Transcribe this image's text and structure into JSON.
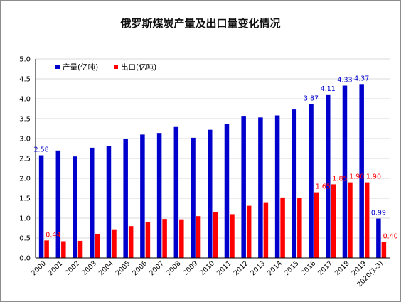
{
  "chart_data": {
    "type": "bar",
    "title": "俄罗斯煤炭产量及出口量变化情况",
    "categories": [
      "2000",
      "2001",
      "2002",
      "2003",
      "2004",
      "2005",
      "2006",
      "2007",
      "2008",
      "2009",
      "2010",
      "2011",
      "2012",
      "2013",
      "2014",
      "2015",
      "2016",
      "2017",
      "2018",
      "2019",
      "2020(1-3)"
    ],
    "series": [
      {
        "name": "产量(亿吨)",
        "color": "#0000cc",
        "values": [
          2.58,
          2.7,
          2.55,
          2.77,
          2.82,
          2.99,
          3.1,
          3.14,
          3.29,
          3.02,
          3.22,
          3.36,
          3.57,
          3.53,
          3.58,
          3.73,
          3.87,
          4.11,
          4.33,
          4.37,
          0.99
        ]
      },
      {
        "name": "出口(亿吨)",
        "color": "#ff0000",
        "values": [
          0.44,
          0.42,
          0.43,
          0.6,
          0.72,
          0.8,
          0.91,
          0.98,
          0.97,
          1.05,
          1.15,
          1.1,
          1.31,
          1.4,
          1.52,
          1.5,
          1.65,
          1.85,
          1.9,
          1.9,
          0.4
        ]
      }
    ],
    "data_labels": {
      "产量(亿吨)": {
        "2000": "2.58",
        "2016": "3.87",
        "2017": "4.11",
        "2018": "4.33",
        "2019": "4.37",
        "2020(1-3)": "0.99"
      },
      "出口(亿吨)": {
        "2000": "0.44",
        "2016": "1.65",
        "2017": "1.85",
        "2018": "1.90",
        "2019": "1.90",
        "2020(1-3)": "0.40"
      }
    },
    "ylim": [
      0,
      5.0
    ],
    "yticks": [
      "0.0",
      "0.5",
      "1.0",
      "1.5",
      "2.0",
      "2.5",
      "3.0",
      "3.5",
      "4.0",
      "4.5",
      "5.0"
    ],
    "grid": true,
    "legend_position": "top-left"
  }
}
